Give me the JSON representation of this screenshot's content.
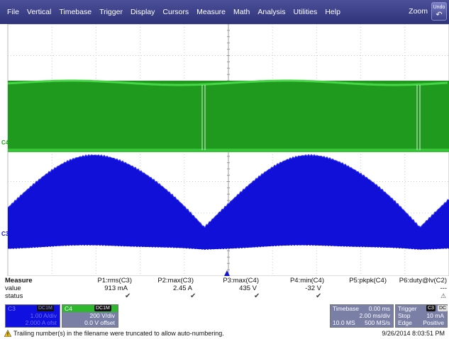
{
  "menu": [
    "File",
    "Vertical",
    "Timebase",
    "Trigger",
    "Display",
    "Cursors",
    "Measure",
    "Math",
    "Analysis",
    "Utilities",
    "Help"
  ],
  "zoom_label": "Zoom",
  "undo_label": "Undo",
  "channels": {
    "c4_marker": "C4",
    "c3_marker": "C3"
  },
  "colors": {
    "c4": "#1aa51a",
    "c3": "#1010d8",
    "menubar": "#3a3f8a"
  },
  "measure": {
    "title": "Measure",
    "row_labels": [
      "value",
      "status"
    ],
    "params": [
      {
        "name": "P1:rms(C3)",
        "value": "913 mA",
        "status": "check"
      },
      {
        "name": "P2:max(C3)",
        "value": "2.45 A",
        "status": "check"
      },
      {
        "name": "P3:max(C4)",
        "value": "435 V",
        "status": "check"
      },
      {
        "name": "P4:min(C4)",
        "value": "-32 V",
        "status": "check"
      },
      {
        "name": "P5:pkpk(C4)",
        "value": "",
        "status": ""
      },
      {
        "name": "P6:duty@lv(C2)",
        "value": "---",
        "status": "warning"
      }
    ]
  },
  "descriptors": {
    "c3": {
      "label": "C3",
      "coupling": "DC1M",
      "scale": "1.00 A/div",
      "offset": "2.000 A ofst"
    },
    "c4": {
      "label": "C4",
      "coupling": "DC1M",
      "scale": "200 V/div",
      "offset": "0.0 V offset"
    },
    "timebase": {
      "label": "Timebase",
      "delay": "0.00 ms",
      "scale": "2.00 ms/div",
      "samples": "10.0 MS",
      "rate": "500 MS/s"
    },
    "trigger": {
      "label": "Trigger",
      "source": "C3",
      "coupling": "DC",
      "mode": "Stop",
      "level": "10 mA",
      "type": "Edge",
      "slope": "Positive"
    }
  },
  "status_message": "Trailing number(s) in the filename were truncated to allow auto-numbering.",
  "timestamp": "9/26/2014 8:03:51 PM"
}
